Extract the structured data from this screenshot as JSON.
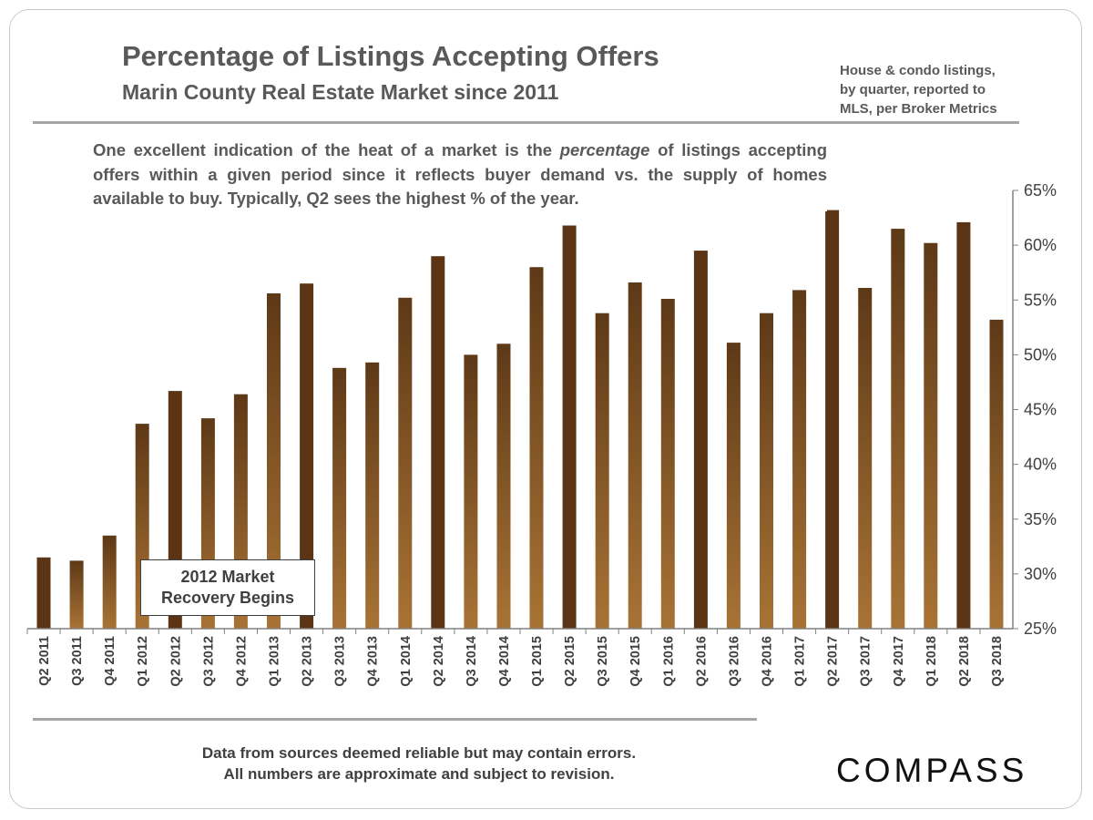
{
  "header": {
    "title": "Percentage of Listings Accepting Offers",
    "subtitle": "Marin County Real Estate Market since 2011",
    "source_note": [
      "House & condo listings,",
      "by quarter, reported to",
      "MLS, per Broker Metrics"
    ]
  },
  "description": {
    "part1": "One excellent indication of the heat of a market is the ",
    "emphasis": "percentage",
    "part2": " of listings accepting offers within a given period since it reflects buyer demand vs. the supply of homes available to buy. Typically,  Q2 sees the highest  % of the year."
  },
  "annotation": {
    "line1": "2012 Market",
    "line2": "Recovery Begins"
  },
  "footer": {
    "line1": "Data from sources deemed reliable but may contain errors.",
    "line2": "All numbers are approximate and subject to revision."
  },
  "logo": {
    "text": "COMPASS"
  },
  "colors": {
    "bar_q2": "#5a3414",
    "bar_other_top": "#5e3917",
    "bar_other_bottom": "#a87335",
    "text": "#595959",
    "rule": "#a6a6a6"
  },
  "chart_data": {
    "type": "bar",
    "title": "Percentage of Listings Accepting Offers",
    "subtitle": "Marin County Real Estate Market since 2011",
    "categories": [
      "Q2 2011",
      "Q3 2011",
      "Q4 2011",
      "Q1 2012",
      "Q2 2012",
      "Q3 2012",
      "Q4 2012",
      "Q1 2013",
      "Q2 2013",
      "Q3 2013",
      "Q4 2013",
      "Q1 2014",
      "Q2 2014",
      "Q3 2014",
      "Q4 2014",
      "Q1 2015",
      "Q2 2015",
      "Q3 2015",
      "Q4 2015",
      "Q1 2016",
      "Q2 2016",
      "Q3 2016",
      "Q4 2016",
      "Q1 2017",
      "Q2 2017",
      "Q3 2017",
      "Q4 2017",
      "Q1 2018",
      "Q2 2018",
      "Q3 2018"
    ],
    "values": [
      31.5,
      31.2,
      33.5,
      43.7,
      46.7,
      44.2,
      46.4,
      55.6,
      56.5,
      48.8,
      49.3,
      55.2,
      59.0,
      50.0,
      51.0,
      58.0,
      61.8,
      53.8,
      56.6,
      55.1,
      59.5,
      51.1,
      53.8,
      55.9,
      63.2,
      56.1,
      61.5,
      60.2,
      62.1,
      53.2
    ],
    "unit": "%",
    "ylim": [
      25,
      65
    ],
    "yticks": [
      "25%",
      "30%",
      "35%",
      "40%",
      "45%",
      "50%",
      "55%",
      "60%",
      "65%"
    ],
    "ytick_values": [
      25,
      30,
      35,
      40,
      45,
      50,
      55,
      60,
      65
    ],
    "y_axis_side": "right",
    "grid": false,
    "legend": false
  }
}
